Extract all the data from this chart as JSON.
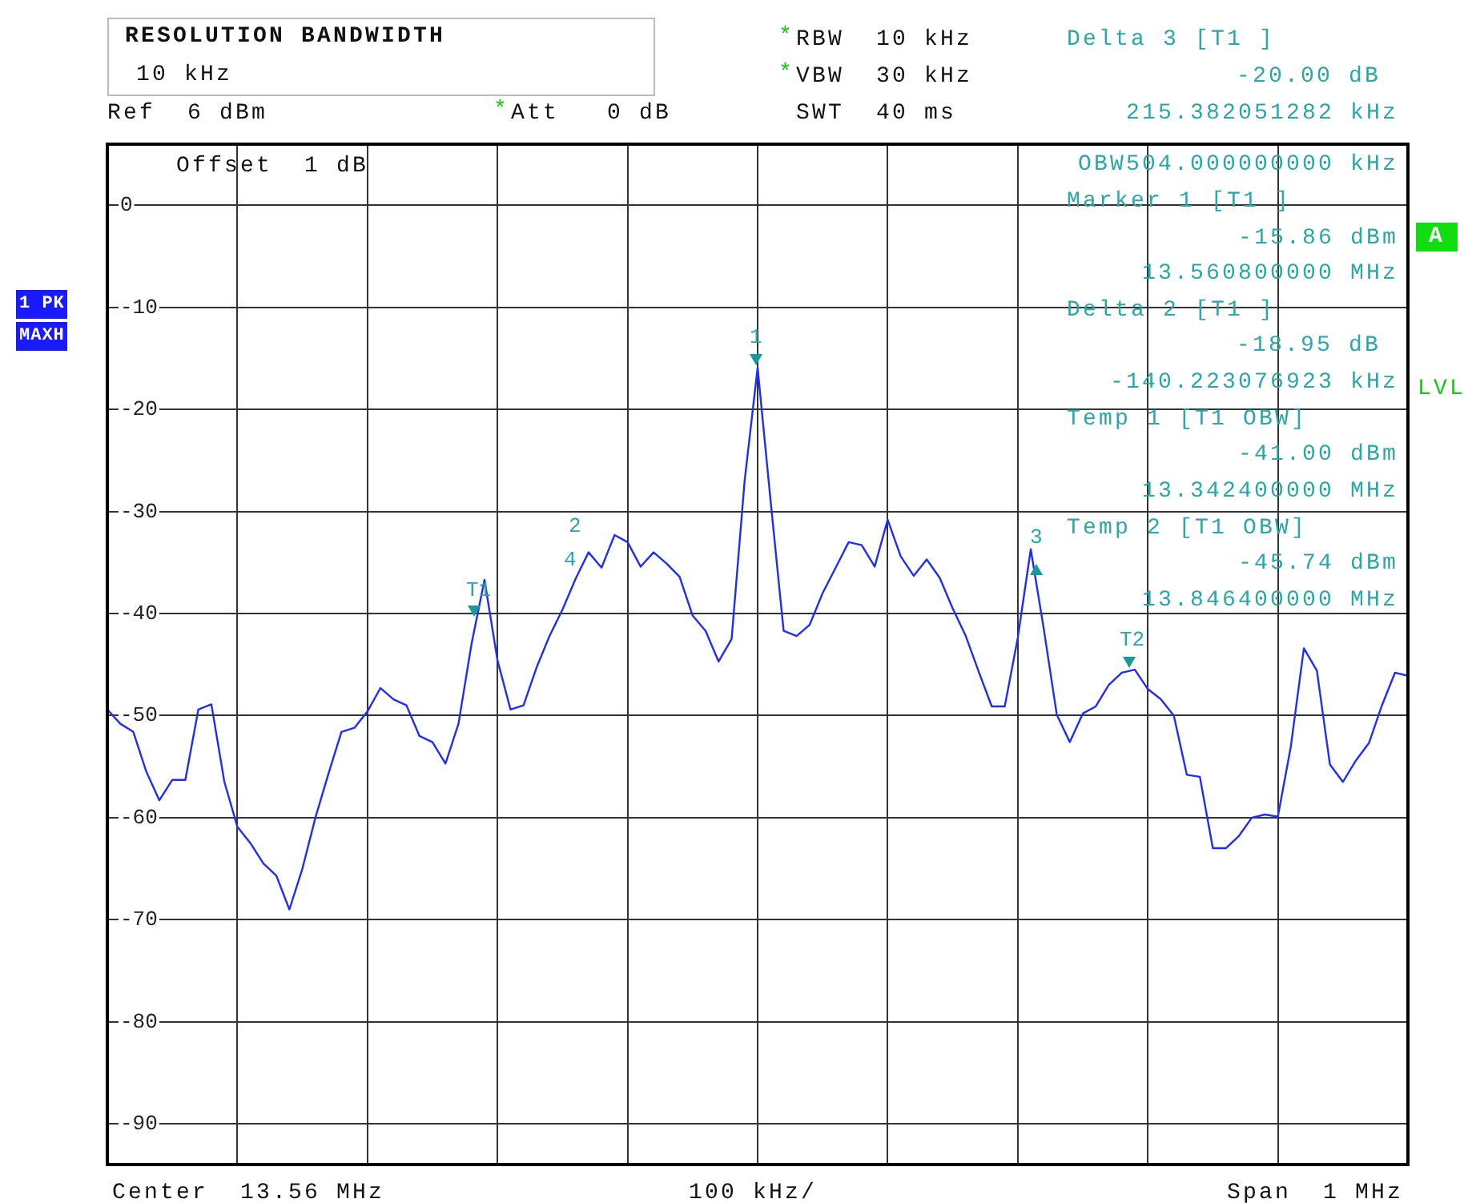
{
  "chart_data": {
    "type": "line",
    "categories": [
      null,
      null,
      null,
      null,
      null,
      null,
      null,
      null,
      null,
      null,
      null,
      null,
      null,
      null,
      null,
      null,
      null,
      null,
      null,
      null,
      null,
      null,
      null,
      null,
      null,
      null,
      null,
      null,
      null,
      null,
      null,
      null,
      null,
      null,
      null,
      null,
      null,
      null,
      null,
      null,
      null,
      null,
      null,
      null,
      null,
      null,
      null,
      null,
      null,
      null,
      null,
      null,
      null,
      null,
      null,
      null,
      null,
      null,
      null,
      null,
      null,
      null,
      null,
      null,
      null,
      null,
      null,
      null,
      null,
      null,
      null,
      null,
      null,
      null,
      null,
      null,
      null,
      null,
      null,
      null,
      null,
      null,
      null,
      null,
      null,
      null,
      null,
      null,
      null,
      null,
      null,
      null,
      null,
      null,
      null,
      null,
      null,
      null,
      null,
      null,
      null
    ],
    "series": [
      {
        "color": "#1f2bff",
        "values": [
          -49.4,
          -50.8,
          -51.6,
          -55.5,
          -58.3,
          -56.3,
          -56.3,
          -49.4,
          -48.9,
          -56.5,
          -60.9,
          -62.5,
          -64.5,
          -65.7,
          -69.0,
          -65.0,
          -60.0,
          -55.7,
          -51.6,
          -51.2,
          -49.6,
          -47.3,
          -48.4,
          -49.0,
          -52.0,
          -52.6,
          -54.7,
          -50.8,
          -43.0,
          -36.7,
          -44.6,
          -49.4,
          -49.0,
          -45.3,
          -42.2,
          -39.6,
          -36.6,
          -34.0,
          -35.5,
          -32.3,
          -33.0,
          -35.4,
          -34.0,
          -35.1,
          -36.4,
          -40.2,
          -41.7,
          -44.7,
          -42.5,
          -27.0,
          -15.9,
          -29.0,
          -41.7,
          -42.2,
          -41.1,
          -38.0,
          -35.5,
          -33.0,
          -33.3,
          -35.4,
          -30.8,
          -34.4,
          -36.3,
          -34.7,
          -36.5,
          -39.5,
          -42.2,
          -45.7,
          -49.1,
          -49.1,
          -42.4,
          -33.7,
          -41.5,
          -49.9,
          -52.6,
          -49.8,
          -49.1,
          -47.0,
          -45.8,
          -45.5,
          -47.4,
          -48.4,
          -50.0,
          -55.8,
          -56.0,
          -63.0,
          -63.0,
          -61.8,
          -60.0,
          -59.7,
          -59.9,
          -53.0,
          -43.4,
          -45.6,
          -54.8,
          -56.5,
          -54.4,
          -52.7,
          -49.0,
          -45.8,
          -46.1
        ]
      }
    ],
    "ylim": [
      -94,
      6
    ],
    "yticks": [
      0,
      -10,
      -20,
      -30,
      -40,
      -50,
      -60,
      -70,
      -80,
      -90
    ],
    "tick_labels": "y",
    "grid": true,
    "legend": false,
    "marker": "none",
    "annotations": [
      "RESOLUTION BANDWIDTH",
      "10 kHz",
      "Ref  6 dBm",
      "*",
      "Att   0 dB",
      "*",
      "RBW  10 kHz",
      "*",
      "VBW  30 kHz",
      "SWT  40 ms",
      "Delta 3 [T1 ]",
      "-20.00 dB",
      "215.382051282 kHz",
      "OBW504.000000000 kHz",
      "Marker 1 [T1 ]",
      "-15.86 dBm",
      "13.560800000 MHz",
      "Delta 2 [T1 ]",
      "-18.95 dB",
      "-140.223076923 kHz",
      "Temp 1 [T1 OBW]",
      "-41.00 dBm",
      "13.342400000 MHz",
      "Temp 2 [T1 OBW]",
      "-45.74 dBm",
      "13.846400000 MHz",
      "Offset  1 dB",
      "1 PK",
      "MAXH",
      "A",
      "LVL",
      "Center  13.56 MHz",
      "100 kHz/",
      "Span  1 MHz",
      "1",
      "T1",
      "2",
      "4",
      "3",
      "T2"
    ]
  }
}
